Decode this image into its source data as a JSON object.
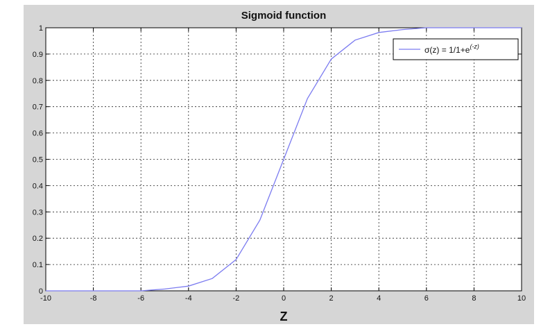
{
  "chart_data": {
    "type": "line",
    "title": "Sigmoid function",
    "xlabel": "Z",
    "ylabel": "",
    "xlim": [
      -10,
      10
    ],
    "ylim": [
      0,
      1
    ],
    "grid": true,
    "legend_position": "top-right",
    "x_ticks": [
      "-10",
      "-8",
      "-6",
      "-4",
      "-2",
      "0",
      "2",
      "4",
      "6",
      "8",
      "10"
    ],
    "y_ticks": [
      "0",
      "0.1",
      "0.2",
      "0.3",
      "0.4",
      "0.5",
      "0.6",
      "0.7",
      "0.8",
      "0.9",
      "1"
    ],
    "series": [
      {
        "name": "σ(z) = 1/1+e^(-z)",
        "color": "#7b7bf0",
        "x": [
          -10,
          -9,
          -8,
          -7,
          -6,
          -5,
          -4,
          -3,
          -2,
          -1,
          0,
          1,
          2,
          3,
          4,
          5,
          6,
          7,
          8,
          9,
          10
        ],
        "y": [
          0.0,
          0.0,
          0.0,
          0.0,
          0.0,
          0.007,
          0.018,
          0.047,
          0.119,
          0.269,
          0.5,
          0.731,
          0.881,
          0.953,
          0.982,
          0.993,
          1.0,
          1.0,
          1.0,
          1.0,
          1.0
        ]
      }
    ]
  },
  "legend": {
    "label_main": "σ(z) = 1/1+e",
    "label_sup": "(-z)"
  }
}
